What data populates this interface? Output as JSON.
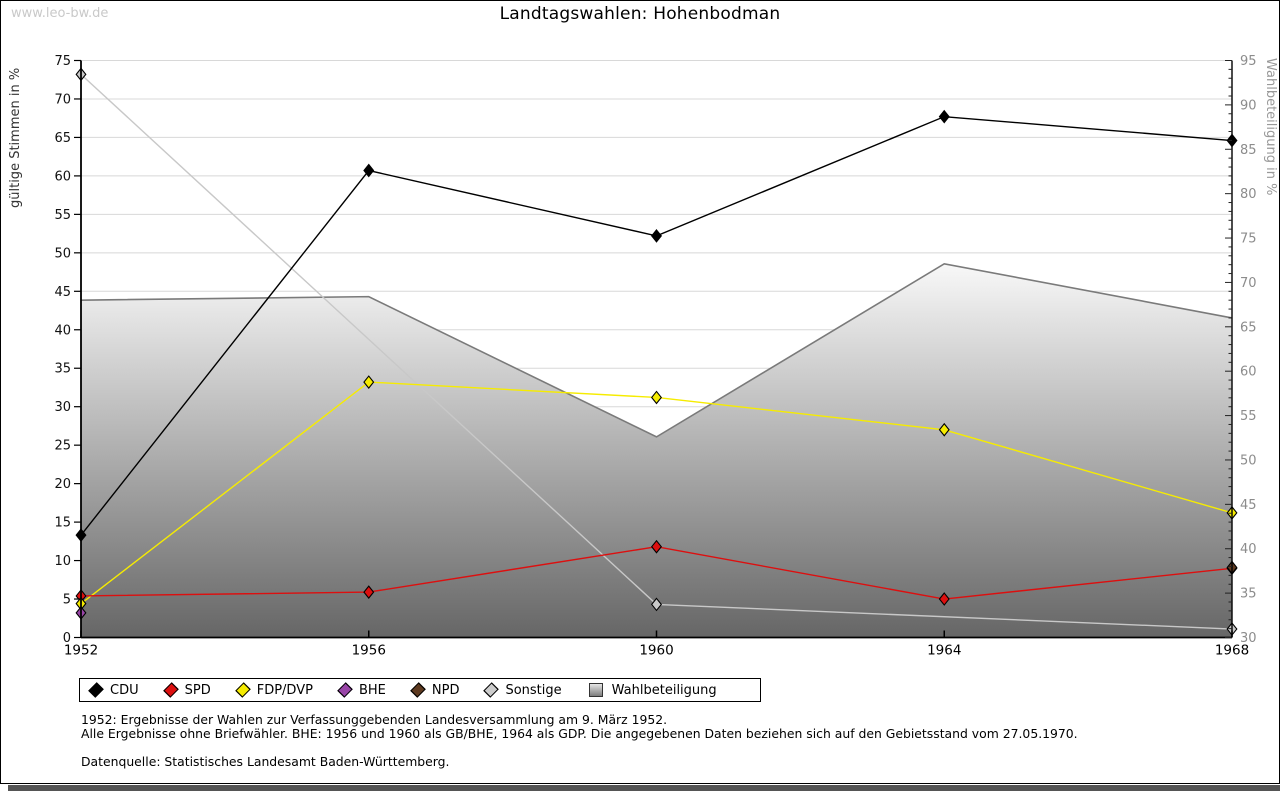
{
  "watermark": "www.leo-bw.de",
  "title": "Landtagswahlen: Hohenbodman",
  "chart_data": {
    "type": "line",
    "title": "Landtagswahlen: Hohenbodman",
    "x": [
      1952,
      1956,
      1960,
      1964,
      1968
    ],
    "grid": true,
    "axes": {
      "left": {
        "label": "gültige Stimmen in %",
        "min": 0,
        "max": 75,
        "step": 5
      },
      "right": {
        "label": "Wahlbeteiligung in %",
        "min": 30,
        "max": 95,
        "step": 5,
        "minor_step": 1
      }
    },
    "series": [
      {
        "name": "CDU",
        "axis": "left",
        "style": "line",
        "color": "#000000",
        "points": [
          [
            1952,
            13.3
          ],
          [
            1956,
            60.7
          ],
          [
            1960,
            52.2
          ],
          [
            1964,
            67.7
          ],
          [
            1968,
            64.6
          ]
        ]
      },
      {
        "name": "SPD",
        "axis": "left",
        "style": "line",
        "color": "#dd0f0f",
        "points": [
          [
            1952,
            5.4
          ],
          [
            1956,
            5.9
          ],
          [
            1960,
            11.8
          ],
          [
            1964,
            5.0
          ],
          [
            1968,
            9.0
          ]
        ]
      },
      {
        "name": "FDP/DVP",
        "axis": "left",
        "style": "line",
        "color": "#f6ec00",
        "points": [
          [
            1952,
            4.4
          ],
          [
            1956,
            33.2
          ],
          [
            1960,
            31.2
          ],
          [
            1964,
            27.0
          ],
          [
            1968,
            16.2
          ]
        ]
      },
      {
        "name": "BHE",
        "axis": "left",
        "style": "line",
        "color": "#9945a8",
        "points": [
          [
            1952,
            3.2
          ]
        ]
      },
      {
        "name": "NPD",
        "axis": "left",
        "style": "line",
        "color": "#5e3a20",
        "points": [
          [
            1968,
            9.1
          ]
        ]
      },
      {
        "name": "Sonstige",
        "axis": "left",
        "style": "line",
        "color": "#c8c8c8",
        "points": [
          [
            1952,
            73.2
          ],
          [
            1960,
            4.3
          ],
          [
            1968,
            1.1
          ]
        ]
      },
      {
        "name": "Wahlbeteiligung",
        "axis": "right",
        "style": "area",
        "color_top": "#f8f8f8",
        "color_bottom": "#666666",
        "border_color": "#7a7a7a",
        "points": [
          [
            1952,
            68.0
          ],
          [
            1956,
            68.4
          ],
          [
            1960,
            52.6
          ],
          [
            1964,
            72.1
          ],
          [
            1968,
            66.0
          ]
        ]
      }
    ],
    "legend_position": "bottom-left"
  },
  "legend": {
    "items": [
      {
        "label": "CDU",
        "swatch": "diamond",
        "color": "#000000"
      },
      {
        "label": "SPD",
        "swatch": "diamond",
        "color": "#dd0f0f"
      },
      {
        "label": "FDP/DVP",
        "swatch": "diamond",
        "color": "#f6ec00"
      },
      {
        "label": "BHE",
        "swatch": "diamond",
        "color": "#9945a8"
      },
      {
        "label": "NPD",
        "swatch": "diamond",
        "color": "#5e3a20"
      },
      {
        "label": "Sonstige",
        "swatch": "diamond",
        "color": "#cccccc"
      },
      {
        "label": "Wahlbeteiligung",
        "swatch": "square",
        "color": "#b0b0b0"
      }
    ]
  },
  "footnotes": {
    "lines": [
      "1952: Ergebnisse der Wahlen zur Verfassunggebenden Landesversammlung am 9. März 1952.",
      "Alle Ergebnisse ohne Briefwähler. BHE: 1956 und 1960 als GB/BHE, 1964 als GDP. Die angegebenen Daten beziehen sich auf den Gebietsstand vom 27.05.1970.",
      "Datenquelle: Statistisches Landesamt Baden-Württemberg."
    ]
  }
}
